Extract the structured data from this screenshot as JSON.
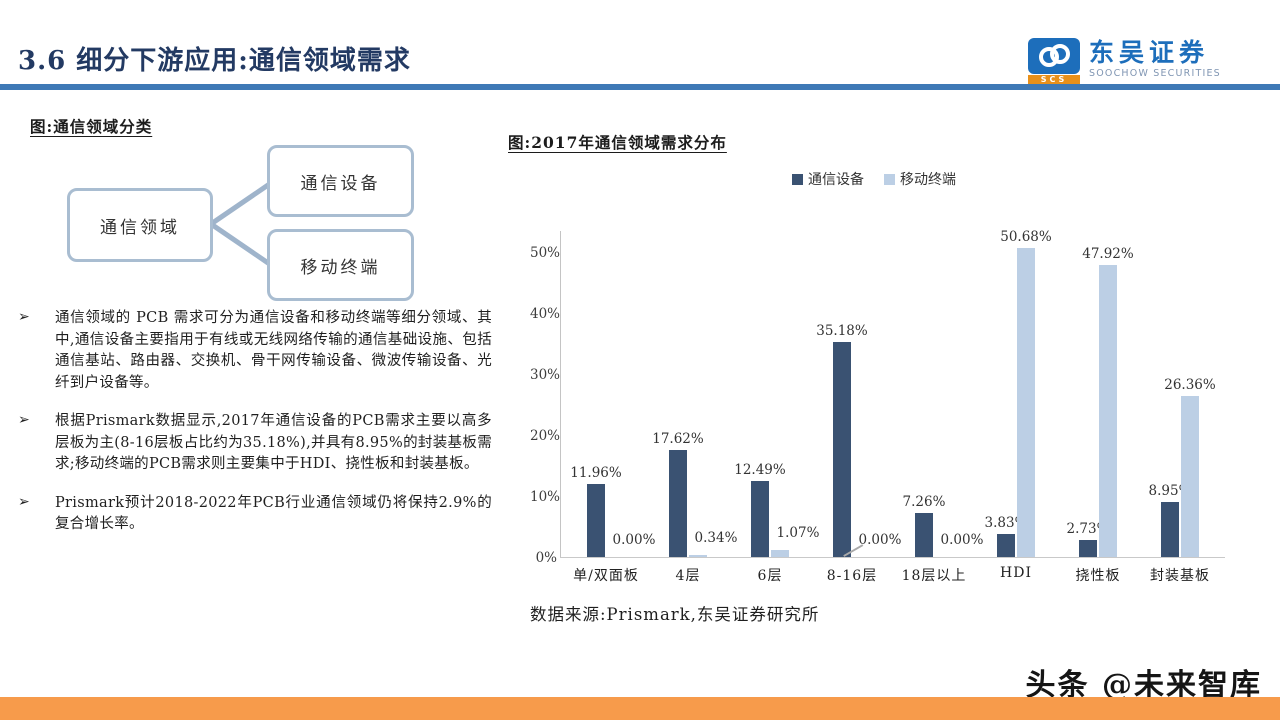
{
  "header": {
    "title": "3.6 细分下游应用:通信领域需求"
  },
  "logo": {
    "brand_cn": "东吴证券",
    "brand_en": "SOOCHOW SECURITIES",
    "icon_label": "SCS"
  },
  "left": {
    "diagram_title": "图:通信领域分类",
    "diagram": {
      "root": "通信领域",
      "children": [
        "通信设备",
        "移动终端"
      ]
    },
    "bullet_marker": "➢",
    "bullets": [
      "通信领域的 PCB 需求可分为通信设备和移动终端等细分领域、其中,通信设备主要指用于有线或无线网络传输的通信基础设施、包括通信基站、路由器、交换机、骨干网传输设备、微波传输设备、光纤到户设备等。",
      "根据Prismark数据显示,2017年通信设备的PCB需求主要以高多层板为主(8-16层板占比约为35.18%),并具有8.95%的封装基板需求;移动终端的PCB需求则主要集中于HDI、挠性板和封装基板。",
      "Prismark预计2018-2022年PCB行业通信领域仍将保持2.9%的复合增长率。"
    ]
  },
  "chart": {
    "title": "图:2017年通信领域需求分布",
    "source": "数据来源:Prismark,东吴证券研究所"
  },
  "chart_data": {
    "type": "bar",
    "title": "2017年通信领域需求分布",
    "categories": [
      "单/双面板",
      "4层",
      "6层",
      "8-16层",
      "18层以上",
      "HDI",
      "挠性板",
      "封装基板"
    ],
    "series": [
      {
        "name": "通信设备",
        "color": "#3A5272",
        "values": [
          11.96,
          17.62,
          12.49,
          35.18,
          7.26,
          3.83,
          2.73,
          8.95
        ]
      },
      {
        "name": "移动终端",
        "color": "#BCCFE5",
        "values": [
          0.0,
          0.34,
          1.07,
          0.0,
          0.0,
          50.68,
          47.92,
          26.36
        ]
      }
    ],
    "ylabel": "",
    "xlabel": "",
    "ylim": [
      0,
      50
    ],
    "yticks": [
      "0%",
      "10%",
      "20%",
      "30%",
      "40%",
      "50%"
    ],
    "grid": "off",
    "legend_position": "top-right",
    "label_format": "percent_2dp",
    "leader_line_category": "8-16层"
  },
  "footer": {
    "watermark": "头条 @未来智库"
  },
  "colors": {
    "title_navy": "#233A63",
    "header_rule_blue": "#3E79B6",
    "brand_blue": "#1D6EBB",
    "box_border": "#A9BDD1",
    "connector": "#9FB4CB",
    "bar_dark": "#3A5272",
    "bar_light": "#BCCFE5",
    "footer_orange": "#F79B4B"
  }
}
